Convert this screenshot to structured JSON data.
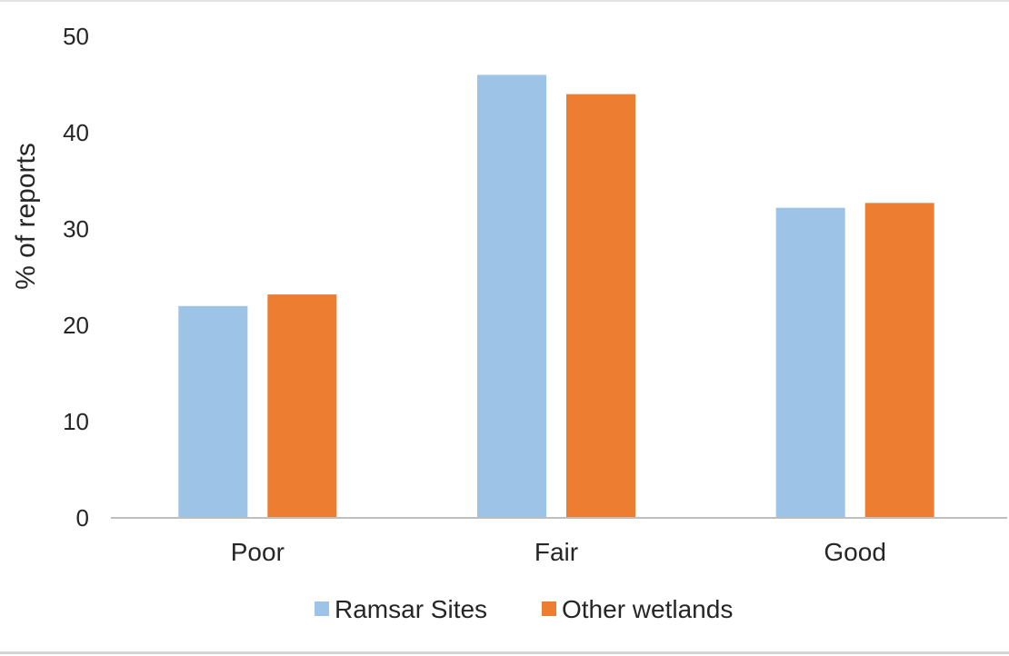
{
  "chart_data": {
    "type": "bar",
    "title": "",
    "xlabel": "",
    "ylabel": "% of reports",
    "categories": [
      "Poor",
      "Fair",
      "Good"
    ],
    "series": [
      {
        "name": "Ramsar Sites",
        "values": [
          22,
          46,
          32.2
        ],
        "color": "#9dc3e6"
      },
      {
        "name": "Other wetlands",
        "values": [
          23.2,
          44,
          32.7
        ],
        "color": "#ed7d31"
      }
    ],
    "ylim": [
      0,
      50
    ],
    "yticks": [
      0,
      10,
      20,
      30,
      40,
      50
    ],
    "grid": false,
    "legend_position": "bottom"
  }
}
